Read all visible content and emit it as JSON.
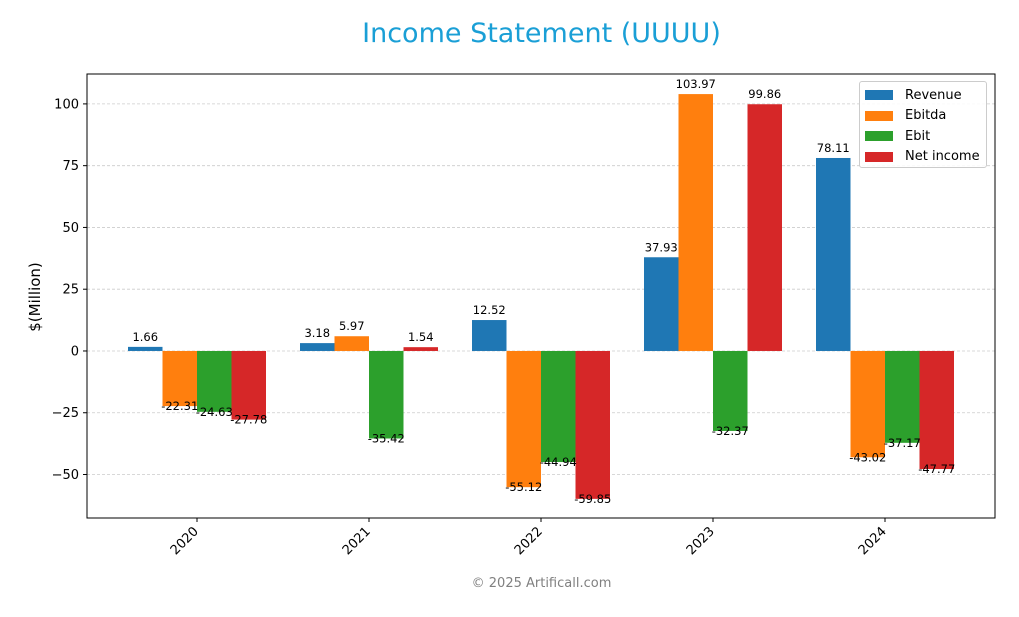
{
  "title": "Income Statement (UUUU)",
  "footer": "© 2025 Artificall.com",
  "colors": {
    "title": "#1a9fd6",
    "revenue": "#1f77b4",
    "ebitda": "#ff7f0e",
    "ebit": "#2ca02c",
    "net_income": "#d62728"
  },
  "legend": [
    {
      "label": "Revenue",
      "color": "#1f77b4"
    },
    {
      "label": "Ebitda",
      "color": "#ff7f0e"
    },
    {
      "label": "Ebit",
      "color": "#2ca02c"
    },
    {
      "label": "Net income",
      "color": "#d62728"
    }
  ],
  "chart_data": {
    "type": "bar",
    "title": "Income Statement (UUUU)",
    "xlabel": "",
    "ylabel": "$(Million)",
    "categories": [
      "2020",
      "2021",
      "2022",
      "2023",
      "2024"
    ],
    "series": [
      {
        "name": "Revenue",
        "color": "#1f77b4",
        "values": [
          1.66,
          3.18,
          12.52,
          37.93,
          78.11
        ]
      },
      {
        "name": "Ebitda",
        "color": "#ff7f0e",
        "values": [
          -22.31,
          5.97,
          -55.12,
          103.97,
          -43.02
        ]
      },
      {
        "name": "Ebit",
        "color": "#2ca02c",
        "values": [
          -24.63,
          -35.42,
          -44.94,
          -32.37,
          -37.17
        ]
      },
      {
        "name": "Net income",
        "color": "#d62728",
        "values": [
          -27.78,
          1.54,
          -59.85,
          99.86,
          -47.77
        ]
      }
    ],
    "yticks": [
      -50,
      -25,
      0,
      25,
      50,
      75,
      100
    ],
    "ytick_labels": [
      "−50",
      "−25",
      "0",
      "25",
      "50",
      "75",
      "100"
    ],
    "ylim": [
      -67.6,
      112.1
    ],
    "grid": true,
    "grid_style": "dashed horizontal",
    "legend_position": "upper right",
    "data_labels": true
  }
}
